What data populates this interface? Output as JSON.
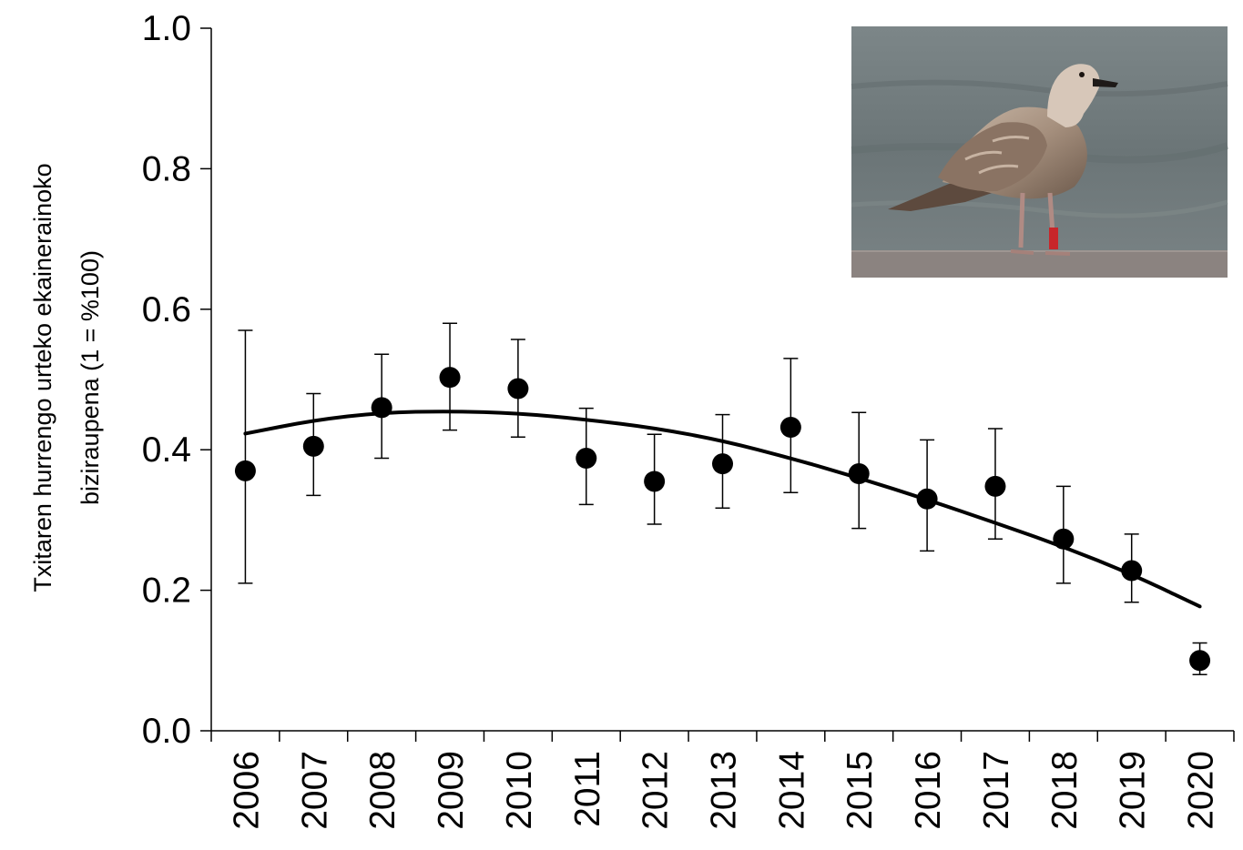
{
  "chart_data": {
    "type": "scatter",
    "title": "",
    "ylabel_lines": [
      "Txitaren hurrengo urteko ekainerainoko",
      "biziraupena (1 = %100)"
    ],
    "xlabel": "",
    "categories": [
      "2006",
      "2007",
      "2008",
      "2009",
      "2010",
      "2011",
      "2012",
      "2013",
      "2014",
      "2015",
      "2016",
      "2017",
      "2018",
      "2019",
      "2020"
    ],
    "ylim": [
      0,
      1
    ],
    "yticks": [
      "0.0",
      "0.2",
      "0.4",
      "0.6",
      "0.8",
      "1.0"
    ],
    "series": [
      {
        "values": [
          0.37,
          0.405,
          0.46,
          0.503,
          0.487,
          0.388,
          0.355,
          0.38,
          0.432,
          0.366,
          0.33,
          0.348,
          0.273,
          0.228,
          0.1
        ],
        "err_low": [
          0.21,
          0.335,
          0.388,
          0.428,
          0.418,
          0.322,
          0.294,
          0.317,
          0.339,
          0.288,
          0.256,
          0.273,
          0.21,
          0.183,
          0.08
        ],
        "err_high": [
          0.57,
          0.48,
          0.536,
          0.58,
          0.557,
          0.459,
          0.422,
          0.45,
          0.53,
          0.453,
          0.414,
          0.43,
          0.348,
          0.28,
          0.125
        ],
        "color": "#000000"
      }
    ],
    "trend": {
      "type": "quadratic",
      "x": [
        "2006",
        "2007",
        "2008",
        "2009",
        "2010",
        "2011",
        "2012",
        "2013",
        "2014",
        "2015",
        "2016",
        "2017",
        "2018",
        "2019",
        "2020"
      ],
      "values": [
        0.423,
        0.442,
        0.453,
        0.455,
        0.452,
        0.443,
        0.431,
        0.413,
        0.388,
        0.36,
        0.329,
        0.296,
        0.262,
        0.223,
        0.177
      ]
    },
    "grid": false,
    "legend": "none"
  },
  "inset_photo": {
    "icon": "gull-photo",
    "bg_color": "#6f7a7c",
    "bird_color": "#a58f7d",
    "ring_color": "#c8262a"
  }
}
